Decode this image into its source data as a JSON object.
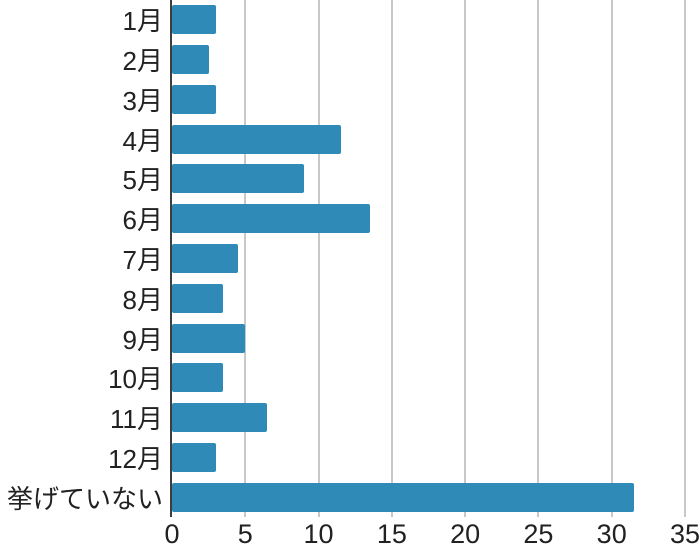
{
  "chart_data": {
    "type": "bar",
    "orientation": "horizontal",
    "title": "",
    "xlabel": "",
    "ylabel": "",
    "categories": [
      "1月",
      "2月",
      "3月",
      "4月",
      "5月",
      "6月",
      "7月",
      "8月",
      "9月",
      "10月",
      "11月",
      "12月",
      "挙げていない"
    ],
    "values": [
      3,
      2.5,
      3,
      11.5,
      9,
      13.5,
      4.5,
      3.5,
      5,
      3.5,
      6.5,
      3,
      31.5
    ],
    "xlim": [
      0,
      35
    ],
    "xticks": [
      0,
      5,
      10,
      15,
      20,
      25,
      30,
      35
    ],
    "grid": true,
    "legend": false,
    "colors": {
      "bar": "#2F8AB8",
      "gridline": "#C8C8C8",
      "axis_line": "#3D3D3D",
      "tick_text": "#212121"
    }
  }
}
